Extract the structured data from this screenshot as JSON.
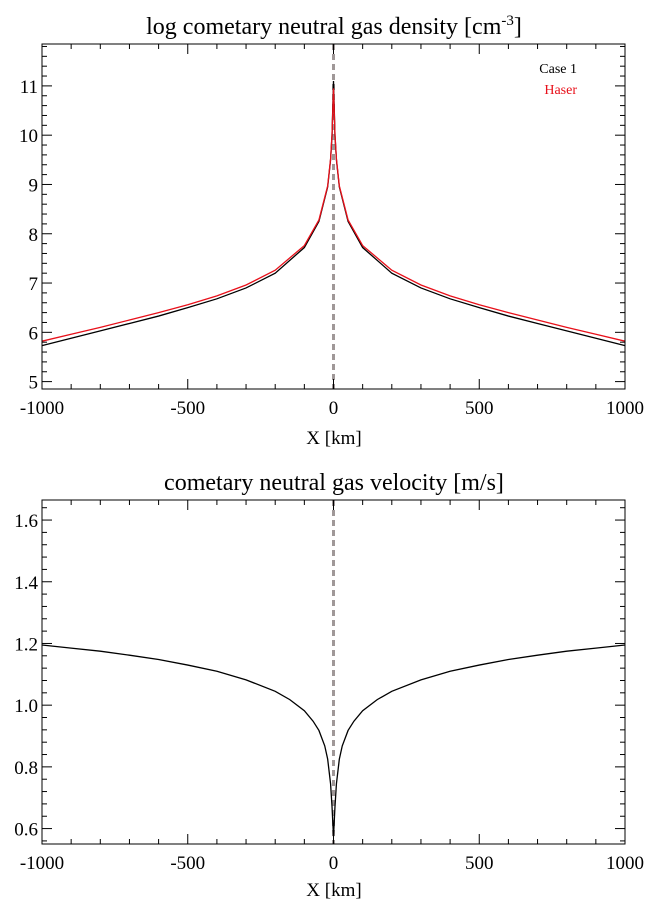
{
  "chart_data": [
    {
      "type": "line",
      "title_main": "log cometary neutral gas density [cm",
      "title_sup": "-3",
      "title_end": "]",
      "xlabel": "X [km]",
      "ylabel": "",
      "xlim": [
        -1000,
        1000
      ],
      "ylim": [
        4.85,
        11.85
      ],
      "x_ticks": [
        -1000,
        -500,
        0,
        500,
        1000
      ],
      "y_ticks": [
        5,
        6,
        7,
        8,
        9,
        10,
        11
      ],
      "legend_position": "top-right",
      "vertical_marker": {
        "x": 0,
        "style": "dashed",
        "color": "#a09898"
      },
      "series": [
        {
          "name": "Case 1",
          "color": "#000000",
          "x": [
            -1000,
            -900,
            -800,
            -700,
            -600,
            -500,
            -400,
            -300,
            -200,
            -100,
            -50,
            -20,
            -10,
            -5,
            0,
            5,
            10,
            20,
            50,
            100,
            200,
            300,
            400,
            500,
            600,
            700,
            800,
            900,
            1000
          ],
          "y": [
            5.73,
            5.88,
            6.03,
            6.18,
            6.33,
            6.5,
            6.68,
            6.9,
            7.2,
            7.72,
            8.25,
            8.95,
            9.5,
            10.0,
            11.1,
            10.0,
            9.5,
            8.95,
            8.25,
            7.72,
            7.2,
            6.9,
            6.68,
            6.5,
            6.33,
            6.18,
            6.03,
            5.88,
            5.73
          ]
        },
        {
          "name": "Haser",
          "color": "#e8101a",
          "x": [
            -1000,
            -900,
            -800,
            -700,
            -600,
            -500,
            -400,
            -300,
            -200,
            -100,
            -50,
            -20,
            -10,
            -5,
            0,
            5,
            10,
            20,
            50,
            100,
            200,
            300,
            400,
            500,
            600,
            700,
            800,
            900,
            1000
          ],
          "y": [
            5.82,
            5.96,
            6.1,
            6.25,
            6.4,
            6.56,
            6.74,
            6.96,
            7.26,
            7.76,
            8.28,
            8.97,
            9.52,
            10.02,
            10.95,
            10.02,
            9.52,
            8.97,
            8.28,
            7.76,
            7.26,
            6.96,
            6.74,
            6.56,
            6.4,
            6.25,
            6.1,
            5.96,
            5.82
          ]
        }
      ]
    },
    {
      "type": "line",
      "title_main": "cometary neutral gas velocity [m/s]",
      "title_sup": "",
      "title_end": "",
      "xlabel": "X [km]",
      "ylabel": "",
      "xlim": [
        -1000,
        1000
      ],
      "ylim": [
        0.55,
        1.665
      ],
      "x_ticks": [
        -1000,
        -500,
        0,
        500,
        1000
      ],
      "y_ticks": [
        0.6,
        0.8,
        1.0,
        1.2,
        1.4,
        1.6
      ],
      "vertical_marker": {
        "x": 0,
        "style": "dashed",
        "color": "#a09898"
      },
      "series": [
        {
          "name": "",
          "color": "#000000",
          "x": [
            -1000,
            -900,
            -800,
            -700,
            -600,
            -500,
            -400,
            -300,
            -200,
            -150,
            -100,
            -70,
            -50,
            -30,
            -20,
            -10,
            -5,
            0,
            5,
            10,
            20,
            30,
            50,
            70,
            100,
            150,
            200,
            300,
            400,
            500,
            600,
            700,
            800,
            900,
            1000
          ],
          "y": [
            1.195,
            1.185,
            1.175,
            1.162,
            1.148,
            1.13,
            1.11,
            1.082,
            1.045,
            1.018,
            0.982,
            0.948,
            0.918,
            0.868,
            0.825,
            0.745,
            0.67,
            0.575,
            0.67,
            0.745,
            0.825,
            0.868,
            0.918,
            0.948,
            0.982,
            1.018,
            1.045,
            1.082,
            1.11,
            1.13,
            1.148,
            1.162,
            1.175,
            1.185,
            1.195
          ]
        }
      ]
    }
  ]
}
